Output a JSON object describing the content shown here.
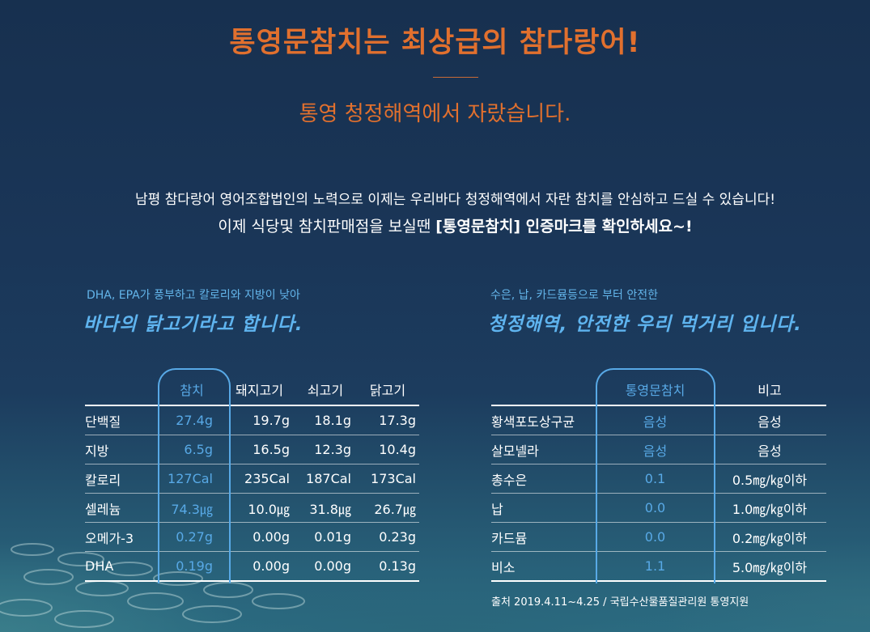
{
  "header": {
    "title": "통영문참치는 최상급의 참다랑어!",
    "subtitle": "통영 청정해역에서 자랐습니다."
  },
  "intro": {
    "line1": "남평 참다랑어 영어조합법인의 노력으로 이제는 우리바다 청정해역에서 자란 참치를 안심하고 드실 수 있습니다!",
    "line2_prefix": "이제 식당및 참치판매점을 보실땐 ",
    "line2_bold": "[통영문참치] 인증마크를 확인하세요~!"
  },
  "nutrition": {
    "caption_small": "DHA, EPA가 풍부하고 칼로리와 지방이 낮아",
    "caption_big": "바다의 닭고기라고 합니다.",
    "headers": [
      "",
      "참치",
      "돼지고기",
      "쇠고기",
      "닭고기"
    ],
    "rows": [
      [
        "단백질",
        "27.4g",
        "19.7g",
        "18.1g",
        "17.3g"
      ],
      [
        "지방",
        "6.5g",
        "16.5g",
        "12.3g",
        "10.4g"
      ],
      [
        "칼로리",
        "127Cal",
        "235Cal",
        "187Cal",
        "173Cal"
      ],
      [
        "셀레늄",
        "74.3㎍",
        "10.0㎍",
        "31.8㎍",
        "26.7㎍"
      ],
      [
        "오메가-3",
        "0.27g",
        "0.00g",
        "0.01g",
        "0.23g"
      ],
      [
        "DHA",
        "0.19g",
        "0.00g",
        "0.00g",
        "0.13g"
      ]
    ]
  },
  "safety": {
    "caption_small": "수은, 납, 카드뮴등으로 부터 안전한",
    "caption_big": "청정해역, 안전한 우리 먹거리 입니다.",
    "headers": [
      "",
      "통영문참치",
      "비고"
    ],
    "rows": [
      [
        "황색포도상구균",
        "음성",
        "음성"
      ],
      [
        "살모넬라",
        "음성",
        "음성"
      ],
      [
        "총수은",
        "0.1",
        "0.5㎎/㎏이하"
      ],
      [
        "납",
        "0.0",
        "1.0㎎/㎏이하"
      ],
      [
        "카드뮴",
        "0.0",
        "0.2㎎/㎏이하"
      ],
      [
        "비소",
        "1.1",
        "5.0㎎/㎏이하"
      ]
    ],
    "source": "출처 2019.4.11~4.25 / 국립수산물품질관리원 통영지원"
  },
  "colors": {
    "accent_orange": "#e1702e",
    "highlight_blue": "#58a9e6",
    "background_navy": "#17304f"
  }
}
